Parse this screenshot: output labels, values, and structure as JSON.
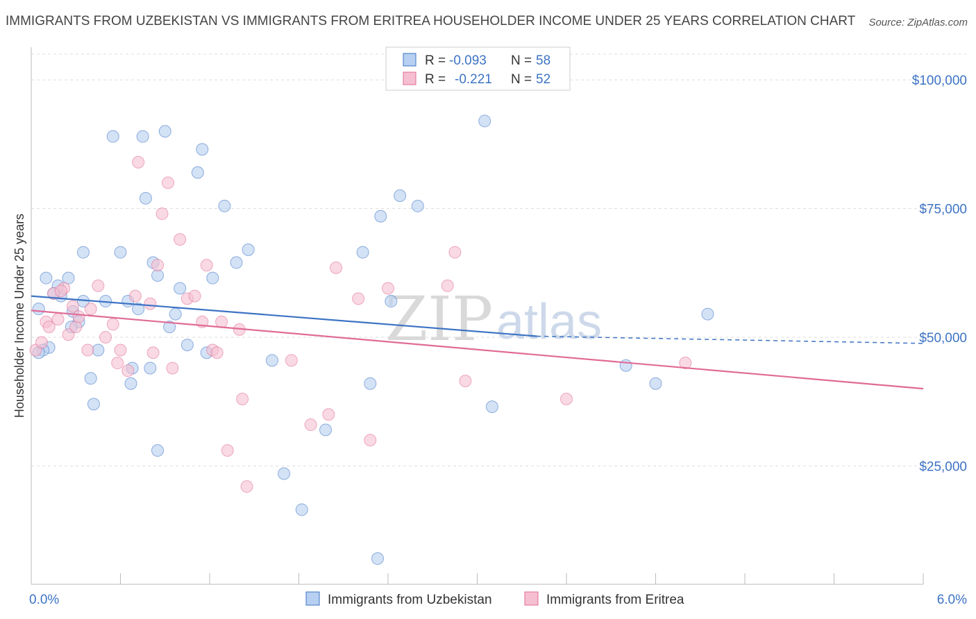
{
  "title": "IMMIGRANTS FROM UZBEKISTAN VS IMMIGRANTS FROM ERITREA HOUSEHOLDER INCOME UNDER 25 YEARS CORRELATION CHART",
  "source": "Source: ZipAtlas.com",
  "watermark": {
    "zip": "ZIP",
    "atlas": "atlas"
  },
  "colors": {
    "blue": "#3d73c4",
    "blue_fill": "#b7cff0",
    "pink": "#e06b96",
    "pink_fill": "#f5bfd1",
    "grid": "#dddddd"
  },
  "legend_box": {
    "rows": [
      {
        "r_label": "R =",
        "r_value": "-0.093",
        "n_label": "N =",
        "n_value": "58"
      },
      {
        "r_label": "R =",
        "r_value": "-0.221",
        "n_label": "N =",
        "n_value": "52"
      }
    ]
  },
  "chart_data": {
    "type": "scatter",
    "xlabel": "",
    "ylabel": "Householder Income Under 25 years",
    "x_tick_labels": [
      "0.0%",
      "6.0%"
    ],
    "y_tick_labels": [
      "$25,000",
      "$50,000",
      "$75,000",
      "$100,000"
    ],
    "xlim": [
      0,
      6
    ],
    "ylim": [
      2000,
      105000
    ],
    "y_ticks": [
      25000,
      50000,
      75000,
      100000
    ],
    "grid": true,
    "legend_position": "bottom-center",
    "series": [
      {
        "name": "Immigrants from Uzbekistan",
        "color": "#3d73c4",
        "trend": {
          "x0": 0.0,
          "y0": 58000,
          "x1": 3.4,
          "y1": 50200,
          "dashed_to_x": 6.0,
          "dashed_to_y": 48800
        },
        "points": [
          [
            0.05,
            55500
          ],
          [
            0.12,
            48000
          ],
          [
            0.08,
            47500
          ],
          [
            0.1,
            61500
          ],
          [
            0.18,
            60000
          ],
          [
            0.2,
            58000
          ],
          [
            0.25,
            61500
          ],
          [
            0.28,
            55000
          ],
          [
            0.32,
            53000
          ],
          [
            0.35,
            57000
          ],
          [
            0.27,
            52000
          ],
          [
            0.4,
            42000
          ],
          [
            0.42,
            37000
          ],
          [
            0.5,
            57000
          ],
          [
            0.55,
            89000
          ],
          [
            0.6,
            66500
          ],
          [
            0.35,
            66500
          ],
          [
            0.67,
            41000
          ],
          [
            0.68,
            44000
          ],
          [
            0.72,
            55500
          ],
          [
            0.75,
            89000
          ],
          [
            0.77,
            77000
          ],
          [
            0.8,
            44000
          ],
          [
            0.82,
            64500
          ],
          [
            0.85,
            62000
          ],
          [
            0.85,
            28000
          ],
          [
            0.9,
            90000
          ],
          [
            0.93,
            52000
          ],
          [
            0.97,
            54500
          ],
          [
            1.0,
            59500
          ],
          [
            1.05,
            48500
          ],
          [
            1.12,
            82000
          ],
          [
            1.15,
            86500
          ],
          [
            1.18,
            47000
          ],
          [
            1.22,
            61500
          ],
          [
            1.3,
            75500
          ],
          [
            1.38,
            64500
          ],
          [
            1.46,
            67000
          ],
          [
            1.62,
            45500
          ],
          [
            1.7,
            23500
          ],
          [
            1.82,
            16500
          ],
          [
            1.98,
            32000
          ],
          [
            2.23,
            66500
          ],
          [
            2.28,
            41000
          ],
          [
            2.33,
            7000
          ],
          [
            2.35,
            73500
          ],
          [
            2.42,
            57000
          ],
          [
            2.48,
            77500
          ],
          [
            2.6,
            75500
          ],
          [
            3.05,
            92000
          ],
          [
            3.1,
            36500
          ],
          [
            4.0,
            44500
          ],
          [
            4.2,
            41000
          ],
          [
            4.55,
            54500
          ],
          [
            0.15,
            58500
          ],
          [
            0.45,
            47500
          ],
          [
            0.65,
            57000
          ],
          [
            0.05,
            47000
          ]
        ]
      },
      {
        "name": "Immigrants from Eritrea",
        "color": "#e06b96",
        "trend": {
          "x0": 0.0,
          "y0": 55200,
          "x1": 6.0,
          "y1": 40000
        },
        "points": [
          [
            0.03,
            47500
          ],
          [
            0.07,
            49000
          ],
          [
            0.1,
            53000
          ],
          [
            0.12,
            52000
          ],
          [
            0.15,
            58500
          ],
          [
            0.18,
            53500
          ],
          [
            0.22,
            59500
          ],
          [
            0.25,
            50500
          ],
          [
            0.28,
            56000
          ],
          [
            0.3,
            52000
          ],
          [
            0.32,
            54000
          ],
          [
            0.38,
            47500
          ],
          [
            0.4,
            55500
          ],
          [
            0.45,
            60000
          ],
          [
            0.5,
            50000
          ],
          [
            0.55,
            52500
          ],
          [
            0.6,
            47500
          ],
          [
            0.65,
            43500
          ],
          [
            0.7,
            58000
          ],
          [
            0.72,
            84000
          ],
          [
            0.8,
            56500
          ],
          [
            0.82,
            47000
          ],
          [
            0.85,
            64000
          ],
          [
            0.88,
            74000
          ],
          [
            0.92,
            80000
          ],
          [
            0.95,
            44000
          ],
          [
            1.0,
            69000
          ],
          [
            1.05,
            57500
          ],
          [
            1.1,
            58000
          ],
          [
            1.15,
            53000
          ],
          [
            1.18,
            64000
          ],
          [
            1.22,
            47500
          ],
          [
            1.28,
            53000
          ],
          [
            1.32,
            28000
          ],
          [
            1.4,
            51500
          ],
          [
            1.42,
            38000
          ],
          [
            1.45,
            21000
          ],
          [
            1.75,
            45500
          ],
          [
            1.88,
            33000
          ],
          [
            2.0,
            35000
          ],
          [
            2.05,
            63500
          ],
          [
            2.2,
            57500
          ],
          [
            2.28,
            30000
          ],
          [
            2.4,
            59500
          ],
          [
            2.8,
            60000
          ],
          [
            2.85,
            66500
          ],
          [
            2.92,
            41500
          ],
          [
            3.6,
            38000
          ],
          [
            4.4,
            45000
          ],
          [
            0.2,
            59000
          ],
          [
            0.58,
            45000
          ],
          [
            1.25,
            47000
          ]
        ]
      }
    ]
  }
}
